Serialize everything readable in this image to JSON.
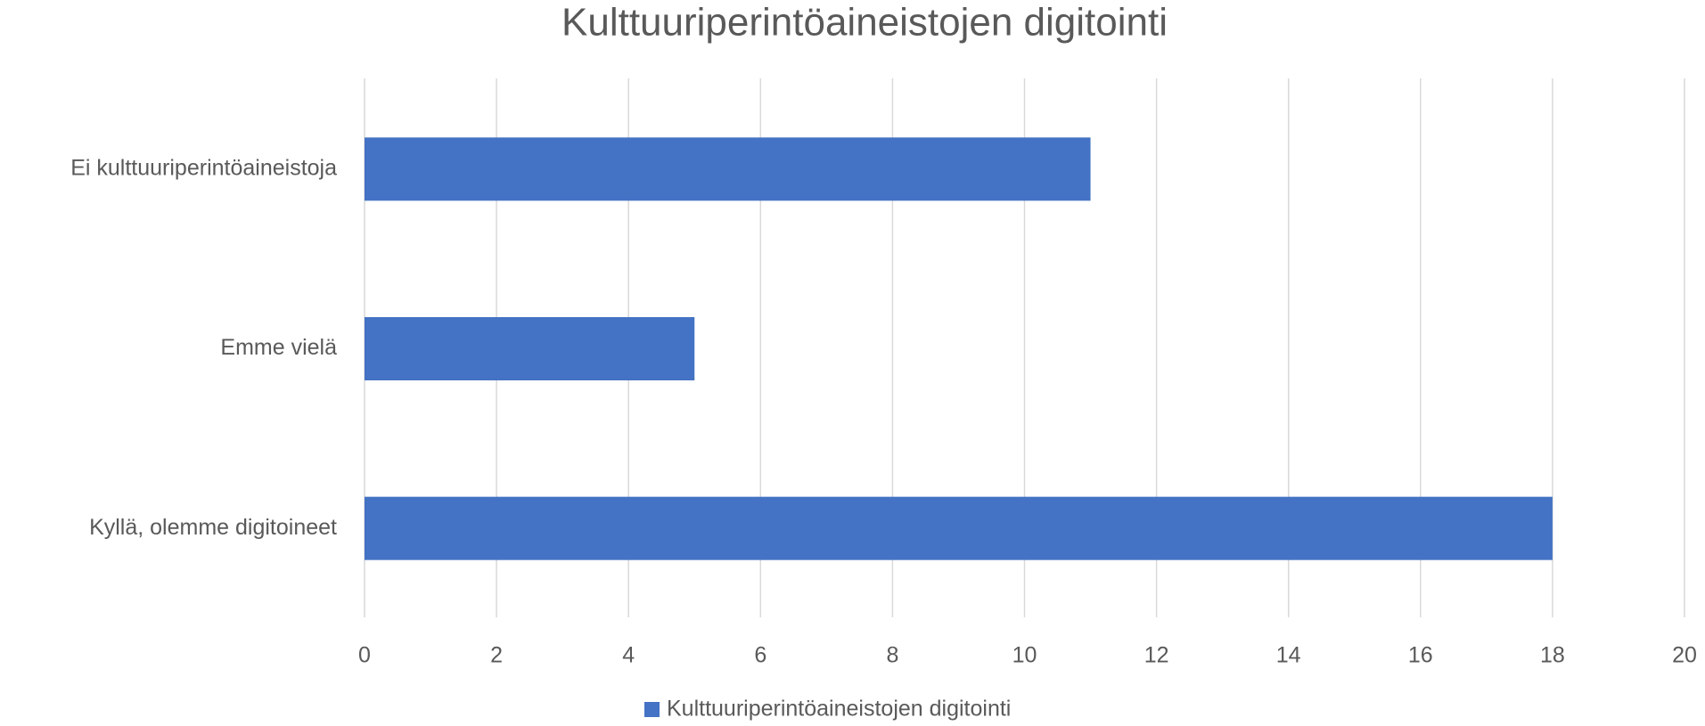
{
  "chart_data": {
    "type": "bar",
    "orientation": "horizontal",
    "title": "Kulttuuriperintöaineistojen digitointi",
    "categories": [
      "Ei kulttuuriperintöaineistoja",
      "Emme vielä",
      "Kyllä, olemme digitoineet"
    ],
    "series": [
      {
        "name": "Kulttuuriperintöaineistojen digitointi",
        "color": "#4472c4",
        "values": [
          11,
          5,
          18
        ]
      }
    ],
    "xlim": [
      0,
      20
    ],
    "xticks": [
      0,
      2,
      4,
      6,
      8,
      10,
      12,
      14,
      16,
      18,
      20
    ],
    "grid": true
  }
}
